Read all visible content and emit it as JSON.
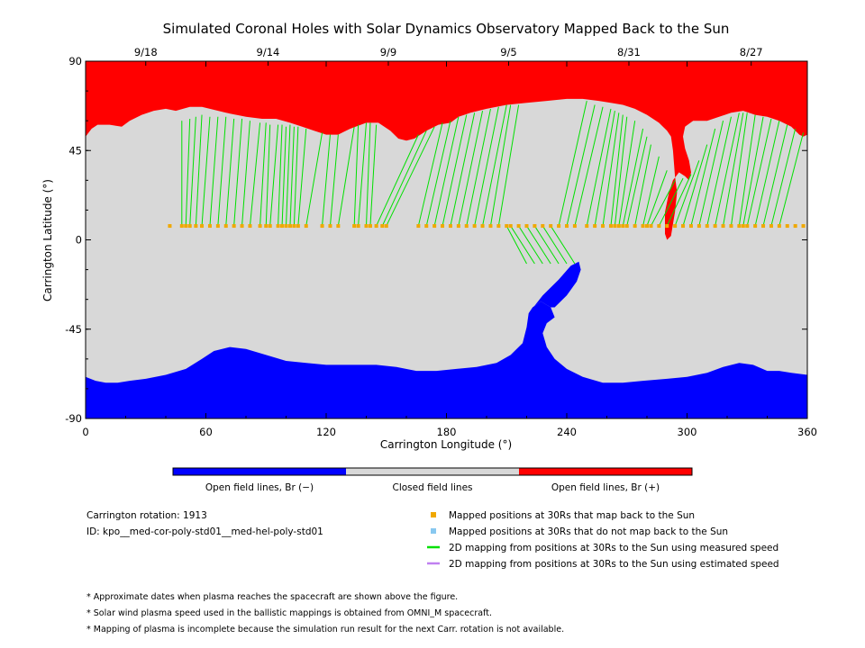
{
  "chart_data": {
    "type": "scatter",
    "title": "Simulated Coronal Holes with Solar Dynamics Observatory Mapped Back to the Sun",
    "xlabel": "Carrington Longitude (°)",
    "ylabel": "Carrington Latitude (°)",
    "xlim": [
      0,
      360
    ],
    "ylim": [
      -90,
      90
    ],
    "xticks": [
      0,
      60,
      120,
      180,
      240,
      300,
      360
    ],
    "yticks": [
      -90,
      -45,
      0,
      45,
      90
    ],
    "top_axis_dates": [
      {
        "label": "9/18",
        "lon": 30
      },
      {
        "label": "9/14",
        "lon": 91
      },
      {
        "label": "9/9",
        "lon": 151
      },
      {
        "label": "9/5",
        "lon": 211
      },
      {
        "label": "8/31",
        "lon": 271
      },
      {
        "label": "8/27",
        "lon": 332
      }
    ],
    "grid": false,
    "colors": {
      "open_negative": "#0000ff",
      "closed": "#d8d8d8",
      "open_positive": "#ff0000",
      "mapped_point": "#f0a800",
      "unmapped_point": "#88c8f0",
      "measured_line": "#00e000",
      "estimated_line": "#c080f0"
    },
    "north_hole_boundary": [
      [
        0,
        52
      ],
      [
        3,
        56
      ],
      [
        6,
        58
      ],
      [
        12,
        58
      ],
      [
        18,
        57
      ],
      [
        22,
        60
      ],
      [
        28,
        63
      ],
      [
        34,
        65
      ],
      [
        40,
        66
      ],
      [
        45,
        65
      ],
      [
        52,
        67
      ],
      [
        58,
        67
      ],
      [
        62,
        66
      ],
      [
        70,
        64
      ],
      [
        80,
        62
      ],
      [
        88,
        61
      ],
      [
        95,
        61
      ],
      [
        102,
        59
      ],
      [
        108,
        57
      ],
      [
        114,
        55
      ],
      [
        120,
        53
      ],
      [
        126,
        53
      ],
      [
        132,
        56
      ],
      [
        140,
        59
      ],
      [
        146,
        59
      ],
      [
        152,
        55
      ],
      [
        156,
        51
      ],
      [
        160,
        50
      ],
      [
        164,
        51
      ],
      [
        170,
        55
      ],
      [
        176,
        58
      ],
      [
        182,
        59
      ],
      [
        186,
        62
      ],
      [
        192,
        64
      ],
      [
        200,
        66
      ],
      [
        210,
        68
      ],
      [
        220,
        69
      ],
      [
        230,
        70
      ],
      [
        240,
        71
      ],
      [
        248,
        71
      ],
      [
        256,
        70
      ],
      [
        262,
        69
      ],
      [
        268,
        68
      ],
      [
        274,
        66
      ],
      [
        280,
        63
      ],
      [
        286,
        59
      ],
      [
        290,
        55
      ],
      [
        292,
        52
      ],
      [
        293,
        45
      ],
      [
        294,
        32
      ],
      [
        295,
        24
      ],
      [
        294,
        14
      ],
      [
        292,
        2
      ],
      [
        290,
        0
      ],
      [
        289,
        3
      ],
      [
        289,
        14
      ],
      [
        291,
        24
      ],
      [
        293,
        30
      ],
      [
        296,
        34
      ],
      [
        299,
        32
      ],
      [
        301,
        30
      ],
      [
        302,
        34
      ],
      [
        301,
        40
      ],
      [
        299,
        46
      ],
      [
        298,
        52
      ],
      [
        299,
        57
      ],
      [
        303,
        60
      ],
      [
        310,
        60
      ],
      [
        316,
        62
      ],
      [
        322,
        64
      ],
      [
        328,
        65
      ],
      [
        334,
        63
      ],
      [
        340,
        62
      ],
      [
        346,
        60
      ],
      [
        352,
        57
      ],
      [
        356,
        53
      ],
      [
        358,
        52
      ],
      [
        360,
        53
      ]
    ],
    "south_hole_boundary": [
      [
        0,
        -69
      ],
      [
        5,
        -71
      ],
      [
        10,
        -72
      ],
      [
        16,
        -72
      ],
      [
        22,
        -71
      ],
      [
        30,
        -70
      ],
      [
        40,
        -68
      ],
      [
        50,
        -65
      ],
      [
        58,
        -60
      ],
      [
        64,
        -56
      ],
      [
        72,
        -54
      ],
      [
        80,
        -55
      ],
      [
        90,
        -58
      ],
      [
        100,
        -61
      ],
      [
        110,
        -62
      ],
      [
        120,
        -63
      ],
      [
        135,
        -63
      ],
      [
        145,
        -63
      ],
      [
        155,
        -64
      ],
      [
        165,
        -66
      ],
      [
        175,
        -66
      ],
      [
        185,
        -65
      ],
      [
        195,
        -64
      ],
      [
        205,
        -62
      ],
      [
        212,
        -58
      ],
      [
        218,
        -52
      ],
      [
        220,
        -44
      ],
      [
        221,
        -37
      ],
      [
        223,
        -34
      ],
      [
        227,
        -31
      ],
      [
        232,
        -34
      ],
      [
        234,
        -39
      ],
      [
        230,
        -42
      ],
      [
        228,
        -47
      ],
      [
        230,
        -54
      ],
      [
        234,
        -60
      ],
      [
        240,
        -65
      ],
      [
        248,
        -69
      ],
      [
        258,
        -72
      ],
      [
        268,
        -72
      ],
      [
        278,
        -71
      ],
      [
        290,
        -70
      ],
      [
        300,
        -69
      ],
      [
        310,
        -67
      ],
      [
        318,
        -64
      ],
      [
        326,
        -62
      ],
      [
        333,
        -63
      ],
      [
        340,
        -66
      ],
      [
        346,
        -66
      ],
      [
        352,
        -67
      ],
      [
        360,
        -68
      ]
    ],
    "south_tongue_outer": [
      [
        221,
        -37
      ],
      [
        228,
        -28
      ],
      [
        236,
        -20
      ],
      [
        242,
        -13
      ],
      [
        246,
        -11
      ],
      [
        247,
        -15
      ],
      [
        245,
        -21
      ],
      [
        240,
        -28
      ],
      [
        234,
        -34
      ],
      [
        232,
        -34
      ],
      [
        227,
        -31
      ],
      [
        223,
        -34
      ]
    ],
    "mapped_positions_lon": [
      42,
      48,
      50,
      52,
      55,
      58,
      62,
      66,
      70,
      74,
      78,
      82,
      87,
      90,
      92,
      96,
      98,
      100,
      102,
      104,
      106,
      110,
      118,
      122,
      126,
      134,
      136,
      140,
      142,
      145,
      148,
      150,
      166,
      170,
      174,
      178,
      182,
      186,
      190,
      194,
      198,
      202,
      206,
      210,
      212,
      216,
      220,
      224,
      228,
      232,
      236,
      240,
      244,
      250,
      254,
      258,
      262,
      264,
      266,
      268,
      270,
      274,
      278,
      280,
      282,
      286,
      290,
      294,
      298,
      302,
      306,
      310,
      314,
      318,
      322,
      326,
      328,
      330,
      334,
      338,
      342,
      346,
      350,
      354,
      358
    ],
    "mapped_positions_lat": 7,
    "footpoint_lines": [
      [
        48,
        60
      ],
      [
        52,
        61
      ],
      [
        55,
        62
      ],
      [
        58,
        63
      ],
      [
        62,
        62
      ],
      [
        66,
        62
      ],
      [
        70,
        62
      ],
      [
        74,
        61
      ],
      [
        78,
        61
      ],
      [
        82,
        60
      ],
      [
        87,
        59
      ],
      [
        90,
        59
      ],
      [
        92,
        58
      ],
      [
        96,
        58
      ],
      [
        98,
        58
      ],
      [
        100,
        57
      ],
      [
        102,
        58
      ],
      [
        104,
        57
      ],
      [
        106,
        57
      ],
      [
        110,
        56
      ],
      [
        118,
        54
      ],
      [
        122,
        53
      ],
      [
        126,
        53
      ],
      [
        134,
        57
      ],
      [
        136,
        58
      ],
      [
        140,
        59
      ],
      [
        142,
        59
      ],
      [
        145,
        58
      ],
      [
        166,
        53
      ],
      [
        170,
        55
      ],
      [
        174,
        57
      ],
      [
        178,
        59
      ],
      [
        182,
        60
      ],
      [
        186,
        62
      ],
      [
        190,
        63
      ],
      [
        194,
        64
      ],
      [
        198,
        65
      ],
      [
        202,
        66
      ],
      [
        206,
        67
      ],
      [
        210,
        68
      ],
      [
        212,
        68
      ],
      [
        216,
        68
      ],
      [
        220,
        -12
      ],
      [
        224,
        -12
      ],
      [
        228,
        -12
      ],
      [
        232,
        -12
      ],
      [
        236,
        -12
      ],
      [
        240,
        -12
      ],
      [
        244,
        -12
      ],
      [
        250,
        70
      ],
      [
        254,
        68
      ],
      [
        258,
        67
      ],
      [
        262,
        66
      ],
      [
        264,
        65
      ],
      [
        266,
        64
      ],
      [
        268,
        63
      ],
      [
        270,
        62
      ],
      [
        274,
        60
      ],
      [
        278,
        56
      ],
      [
        280,
        52
      ],
      [
        282,
        48
      ],
      [
        286,
        42
      ],
      [
        290,
        35
      ],
      [
        294,
        30
      ],
      [
        298,
        31
      ],
      [
        302,
        33
      ],
      [
        306,
        40
      ],
      [
        310,
        48
      ],
      [
        314,
        56
      ],
      [
        318,
        60
      ],
      [
        322,
        62
      ],
      [
        326,
        64
      ],
      [
        328,
        64
      ],
      [
        330,
        64
      ],
      [
        334,
        63
      ],
      [
        338,
        62
      ],
      [
        342,
        61
      ],
      [
        346,
        60
      ],
      [
        350,
        58
      ],
      [
        354,
        56
      ],
      [
        358,
        54
      ]
    ],
    "colorbar": {
      "segments": [
        {
          "label": "Open field lines, Br (−)",
          "color": "#0000ff"
        },
        {
          "label": "Closed field lines",
          "color": "#d8d8d8"
        },
        {
          "label": "Open field lines, Br (+)",
          "color": "#ff0000"
        }
      ]
    }
  },
  "info": {
    "rotation": "Carrington rotation: 1913",
    "id": "ID: kpo__med-cor-poly-std01__med-hel-poly-std01"
  },
  "legend": [
    {
      "label": "Mapped positions at 30Rs that map back to the Sun",
      "kind": "square",
      "color": "#f0a800"
    },
    {
      "label": "Mapped positions at 30Rs that do not map back to the Sun",
      "kind": "square",
      "color": "#88c8f0"
    },
    {
      "label": "2D mapping from positions at 30Rs to the Sun using measured speed",
      "kind": "line",
      "color": "#00e000"
    },
    {
      "label": "2D mapping from positions at 30Rs to the Sun using estimated speed",
      "kind": "line",
      "color": "#c080f0"
    }
  ],
  "notes": [
    "* Approximate dates when plasma reaches the spacecraft are shown above the figure.",
    "* Solar wind plasma speed used in the ballistic mappings is obtained from OMNI_M spacecraft.",
    "* Mapping of plasma is incomplete because the simulation run result for the next Carr. rotation is not available."
  ]
}
